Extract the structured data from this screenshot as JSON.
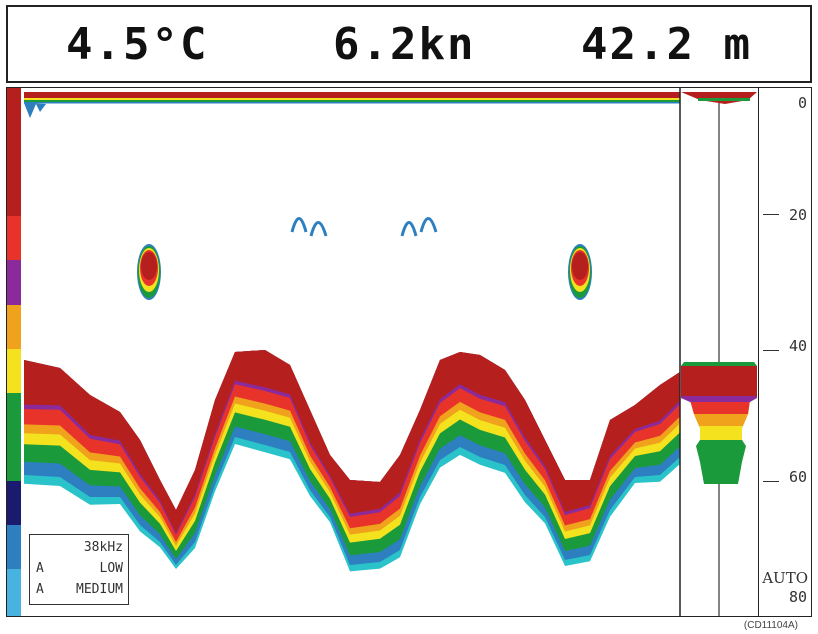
{
  "header": {
    "temperature": "4.5°C",
    "speed": "6.2kn",
    "depth": "42.2 m"
  },
  "depth_scale": {
    "labels": [
      "0",
      "20",
      "40",
      "60"
    ],
    "range_mode": "AUTO",
    "range_value": "80"
  },
  "info_box": {
    "frequency": "38kHz",
    "line2_mode": "A",
    "line2_value": "LOW",
    "line3_mode": "A",
    "line3_value": "MEDIUM"
  },
  "caption": "(CD11104A)",
  "colors": {
    "strong": "#b5201f",
    "red": "#e8332b",
    "purple": "#8b2a9a",
    "orange": "#f0a21c",
    "yellow": "#f4e21e",
    "green": "#1a9a3a",
    "dark_blue": "#1a1a6e",
    "blue": "#2d7fc0",
    "light_blue": "#47b3e0",
    "cyan": "#29c3c9"
  }
}
